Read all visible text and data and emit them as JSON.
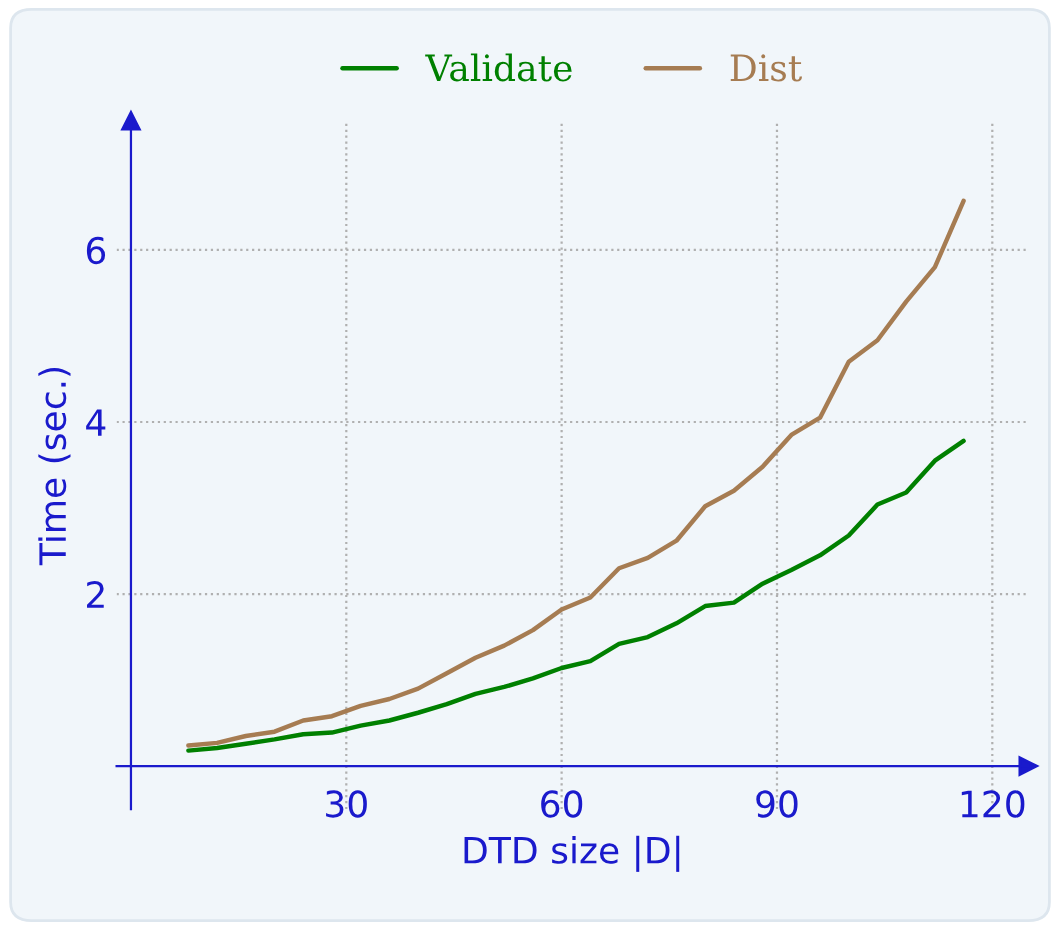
{
  "chart_data": {
    "type": "line",
    "xlabel": "DTD size |D|",
    "ylabel": "Time (sec.)",
    "x": [
      8,
      12,
      16,
      20,
      24,
      28,
      32,
      36,
      40,
      44,
      48,
      52,
      56,
      60,
      64,
      68,
      72,
      76,
      80,
      84,
      88,
      92,
      96,
      100,
      104,
      108,
      112,
      116
    ],
    "series": [
      {
        "name": "Validate",
        "color": "#008000",
        "values": [
          0.18,
          0.21,
          0.26,
          0.31,
          0.37,
          0.39,
          0.47,
          0.53,
          0.62,
          0.72,
          0.84,
          0.92,
          1.02,
          1.14,
          1.22,
          1.42,
          1.5,
          1.66,
          1.86,
          1.9,
          2.12,
          2.28,
          2.45,
          2.68,
          3.04,
          3.18,
          3.55,
          3.78
        ]
      },
      {
        "name": "Dist",
        "color": "#a67c52",
        "values": [
          0.24,
          0.27,
          0.35,
          0.4,
          0.53,
          0.58,
          0.7,
          0.78,
          0.9,
          1.08,
          1.26,
          1.4,
          1.58,
          1.82,
          1.96,
          2.3,
          2.42,
          2.62,
          3.02,
          3.2,
          3.48,
          3.85,
          4.05,
          4.7,
          4.95,
          5.4,
          5.8,
          6.57
        ]
      }
    ],
    "xlim": [
      -2,
      125
    ],
    "ylim": [
      -0.5,
      7.5
    ],
    "xticks": [
      30,
      60,
      90,
      120
    ],
    "yticks": [
      2,
      4,
      6
    ],
    "grid": true,
    "legend": "top",
    "marker": "none",
    "line_style": "solid"
  }
}
